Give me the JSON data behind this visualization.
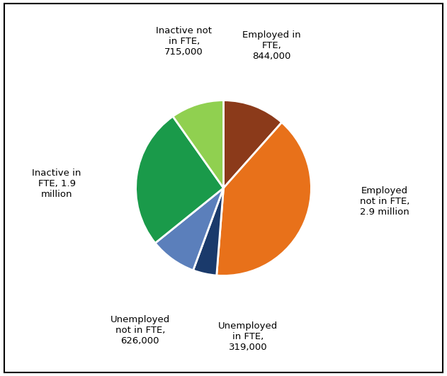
{
  "slices": [
    {
      "label": "Employed in\nFTE,\n844,000",
      "value": 844000,
      "color": "#8B3A1A"
    },
    {
      "label": "Employed\nnot in FTE,\n2.9 million",
      "value": 2900000,
      "color": "#E8711A"
    },
    {
      "label": "Unemployed\nin FTE,\n319,000",
      "value": 319000,
      "color": "#1A3A6B"
    },
    {
      "label": "Unemployed\nnot in FTE,\n626,000",
      "value": 626000,
      "color": "#5B7FBB"
    },
    {
      "label": "Inactive in\nFTE, 1.9\nmillion",
      "value": 1900000,
      "color": "#1A9A4A"
    },
    {
      "label": "Inactive not\nin FTE,\n715,000",
      "value": 715000,
      "color": "#90D050"
    }
  ],
  "background_color": "#FFFFFF",
  "border_color": "#000000",
  "startangle": 90,
  "font_size": 9.5,
  "figsize": [
    6.31,
    5.31
  ],
  "dpi": 100
}
